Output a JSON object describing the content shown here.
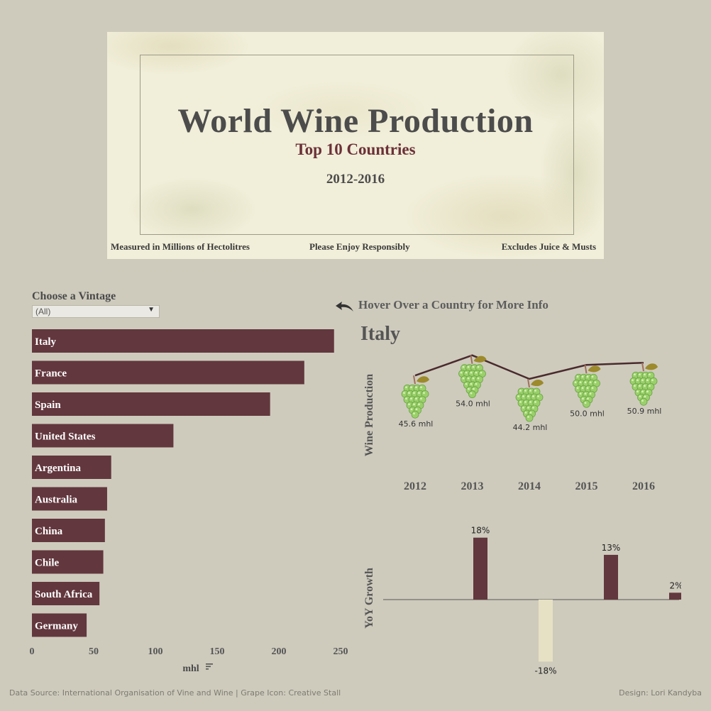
{
  "header": {
    "title": "World Wine Production",
    "subtitle": "Top 10 Countries",
    "years": "2012-2016",
    "note_left": "Measured in Millions of Hectolitres",
    "note_center": "Please Enjoy Responsibly",
    "note_right": "Excludes Juice & Musts"
  },
  "filter": {
    "label": "Choose a Vintage",
    "selected": "(All)"
  },
  "hint": {
    "text": "Hover Over a Country for More Info",
    "icon": "curved-arrow-icon"
  },
  "detail": {
    "country": "Italy",
    "production_axis_label": "Wine Production",
    "growth_axis_label": "YoY Growth"
  },
  "colors": {
    "background": "#cecbbd",
    "bar": "#62373d",
    "negative_bar": "#e6e1c4",
    "title_accent": "#6b3138",
    "grape": "#9ad06a"
  },
  "footer": {
    "source": "Data Source: International Organisation of Vine and Wine | Grape Icon: Creative Stall",
    "design": "Design: Lori Kandyba"
  },
  "chart_data": [
    {
      "type": "bar",
      "orientation": "horizontal",
      "categories": [
        "Italy",
        "France",
        "Spain",
        "United States",
        "Argentina",
        "Australia",
        "China",
        "Chile",
        "South Africa",
        "Germany"
      ],
      "values": [
        244.7,
        220.6,
        192.9,
        114.6,
        64.2,
        60.9,
        59.1,
        57.8,
        54.7,
        44.3
      ],
      "xlabel": "mhl",
      "xticks": [
        0,
        50,
        100,
        150,
        200,
        250
      ],
      "xlim": [
        0,
        255
      ]
    },
    {
      "type": "line",
      "x": [
        "2012",
        "2013",
        "2014",
        "2015",
        "2016"
      ],
      "values": [
        45.6,
        54.0,
        44.2,
        50.0,
        50.9
      ],
      "data_labels": [
        "45.6 mhl",
        "54.0 mhl",
        "44.2 mhl",
        "50.0 mhl",
        "50.9 mhl"
      ],
      "ylabel": "Wine Production",
      "marker": "grape-icon"
    },
    {
      "type": "bar",
      "x": [
        "2012",
        "2013",
        "2014",
        "2015",
        "2016"
      ],
      "values": [
        null,
        18,
        -18,
        13,
        2
      ],
      "data_labels": [
        "",
        "18%",
        "-18%",
        "13%",
        "2%"
      ],
      "ylabel": "YoY Growth"
    }
  ]
}
